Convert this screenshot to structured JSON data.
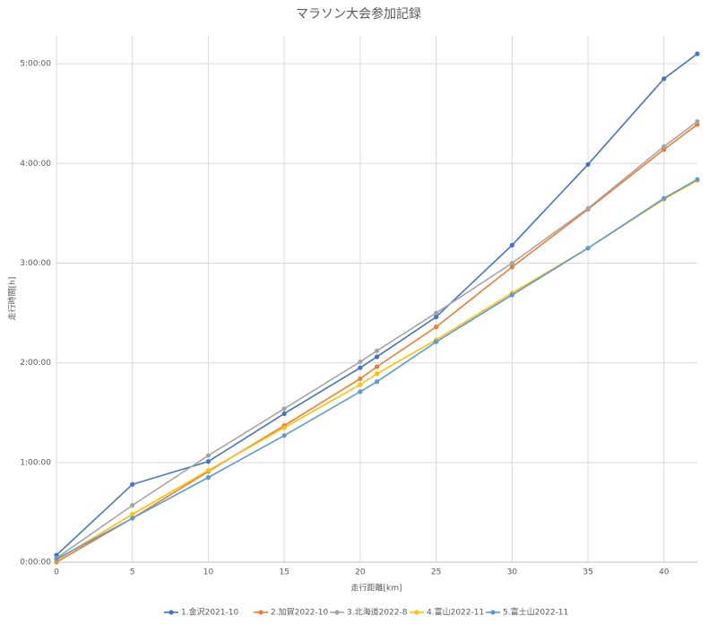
{
  "chart_data": {
    "type": "line",
    "title": "マラソン大会参加記録",
    "x_label": "走行距離[km]",
    "y_label": "走行時間[h]",
    "x": [
      0,
      5,
      10,
      15,
      20,
      21.1,
      25,
      30,
      35,
      40,
      42.195
    ],
    "xlim": [
      0,
      42.195
    ],
    "xticks": [
      0,
      5,
      10,
      15,
      20,
      25,
      30,
      35,
      40
    ],
    "ylim": [
      0,
      5.28
    ],
    "yticks": [
      {
        "value": 0,
        "label": "0:00:00"
      },
      {
        "value": 1,
        "label": "1:00:00"
      },
      {
        "value": 2,
        "label": "2:00:00"
      },
      {
        "value": 3,
        "label": "3:00:00"
      },
      {
        "value": 4,
        "label": "4:00:00"
      },
      {
        "value": 5,
        "label": "5:00:00"
      }
    ],
    "grid": true,
    "legend": "bottom",
    "series": [
      {
        "name": "1.金沢2021-10",
        "color": "#4472c4",
        "values": [
          0.07,
          0.78,
          1.01,
          1.49,
          1.95,
          2.06,
          2.46,
          3.18,
          3.99,
          4.85,
          5.1
        ]
      },
      {
        "name": "2.加賀2022-10",
        "color": "#ed7d31",
        "values": [
          0.0,
          0.44,
          0.91,
          1.37,
          1.84,
          1.96,
          2.36,
          2.96,
          3.54,
          4.14,
          4.39
        ]
      },
      {
        "name": "3.北海道2022-8",
        "color": "#a5a5a5",
        "values": [
          0.04,
          0.57,
          1.07,
          1.54,
          2.01,
          2.12,
          2.5,
          3.0,
          3.55,
          4.17,
          4.42
        ]
      },
      {
        "name": "4.富山2022-11",
        "color": "#ffc000",
        "values": [
          0.02,
          0.48,
          0.92,
          1.35,
          1.78,
          1.89,
          2.23,
          2.7,
          3.15,
          3.64,
          3.83
        ]
      },
      {
        "name": "5.富士山2022-11",
        "color": "#5b9bd5",
        "values": [
          0.03,
          0.44,
          0.85,
          1.27,
          1.71,
          1.81,
          2.21,
          2.68,
          3.15,
          3.65,
          3.84
        ]
      }
    ]
  }
}
